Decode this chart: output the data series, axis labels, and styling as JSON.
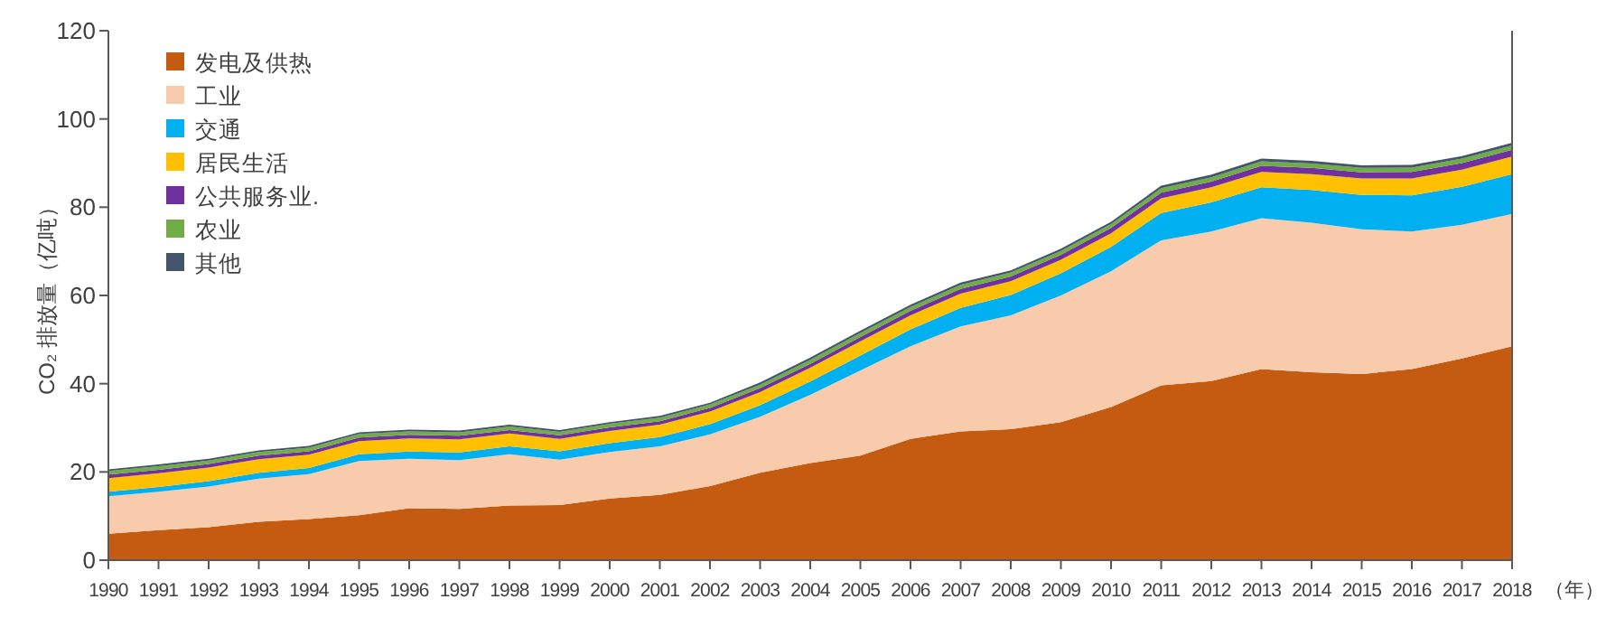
{
  "chart_data": {
    "type": "area",
    "stacked": true,
    "ylabel": "CO₂ 排放量（亿吨）",
    "xlabel": "（年）",
    "categories": [
      "1990",
      "1991",
      "1992",
      "1993",
      "1994",
      "1995",
      "1996",
      "1997",
      "1998",
      "1999",
      "2000",
      "2001",
      "2002",
      "2003",
      "2004",
      "2005",
      "2006",
      "2007",
      "2008",
      "2009",
      "2010",
      "2011",
      "2012",
      "2013",
      "2014",
      "2015",
      "2016",
      "2017",
      "2018"
    ],
    "ylim": [
      0,
      120
    ],
    "yticks": [
      0,
      20,
      40,
      60,
      80,
      100,
      120
    ],
    "grid": false,
    "legend": "top left",
    "series": [
      {
        "name": "发电及供热",
        "color": "#c55a11",
        "values": [
          6,
          6.8,
          7.5,
          8.7,
          9.3,
          10.2,
          11.8,
          11.6,
          12.4,
          12.5,
          14,
          14.8,
          16.8,
          19.8,
          22,
          23.7,
          27.5,
          29.2,
          29.7,
          31.3,
          34.7,
          39.6,
          40.6,
          43.3,
          42.6,
          42.2,
          43.3,
          45.7,
          48.5
        ]
      },
      {
        "name": "工业",
        "color": "#f8cbad",
        "values": [
          8.5,
          8.7,
          9.2,
          9.8,
          10.2,
          12.3,
          11.2,
          11.1,
          11.6,
          10.3,
          10.5,
          11,
          11.7,
          12.7,
          15.5,
          19.3,
          21,
          23.8,
          25.8,
          28.7,
          30.8,
          32.9,
          33.9,
          34.2,
          33.9,
          32.8,
          31.2,
          30.3,
          30
        ]
      },
      {
        "name": "交通",
        "color": "#00b0f0",
        "values": [
          1,
          1.1,
          1.2,
          1.3,
          1.4,
          1.5,
          1.6,
          1.7,
          1.8,
          1.9,
          2,
          2.1,
          2.3,
          2.6,
          3,
          3.4,
          3.8,
          4.2,
          4.6,
          5,
          5.5,
          6.2,
          6.6,
          7,
          7.4,
          7.8,
          8.2,
          8.6,
          9
        ]
      },
      {
        "name": "居民生活",
        "color": "#ffc000",
        "values": [
          3.1,
          3.1,
          3.1,
          3.1,
          3,
          3,
          3,
          3,
          2.9,
          2.8,
          2.8,
          2.8,
          2.9,
          3,
          3.1,
          3.2,
          3.2,
          3.2,
          3.1,
          3.1,
          3.1,
          3.3,
          3.4,
          3.5,
          3.6,
          3.7,
          3.8,
          3.9,
          4
        ]
      },
      {
        "name": "公共服务业.",
        "color": "#7030a0",
        "values": [
          0.8,
          0.8,
          0.8,
          0.8,
          0.8,
          0.8,
          0.8,
          0.8,
          0.8,
          0.8,
          0.8,
          0.8,
          0.8,
          0.9,
          0.9,
          1,
          1,
          1.1,
          1.1,
          1.1,
          1.2,
          1.3,
          1.3,
          1.4,
          1.4,
          1.4,
          1.5,
          1.5,
          1.5
        ]
      },
      {
        "name": "农业",
        "color": "#70ad47",
        "values": [
          0.8,
          0.8,
          0.8,
          0.8,
          0.8,
          0.8,
          0.8,
          0.8,
          0.8,
          0.8,
          0.8,
          0.8,
          0.8,
          0.8,
          0.9,
          0.9,
          0.9,
          0.9,
          0.9,
          0.9,
          0.9,
          1,
          1,
          1,
          1,
          1,
          1,
          1,
          1
        ]
      },
      {
        "name": "其他",
        "color": "#44546a",
        "values": [
          0.4,
          0.4,
          0.4,
          0.4,
          0.4,
          0.4,
          0.4,
          0.4,
          0.4,
          0.4,
          0.4,
          0.4,
          0.4,
          0.5,
          0.5,
          0.5,
          0.5,
          0.5,
          0.5,
          0.5,
          0.5,
          0.6,
          0.6,
          0.6,
          0.6,
          0.6,
          0.6,
          0.6,
          0.6
        ]
      }
    ]
  }
}
